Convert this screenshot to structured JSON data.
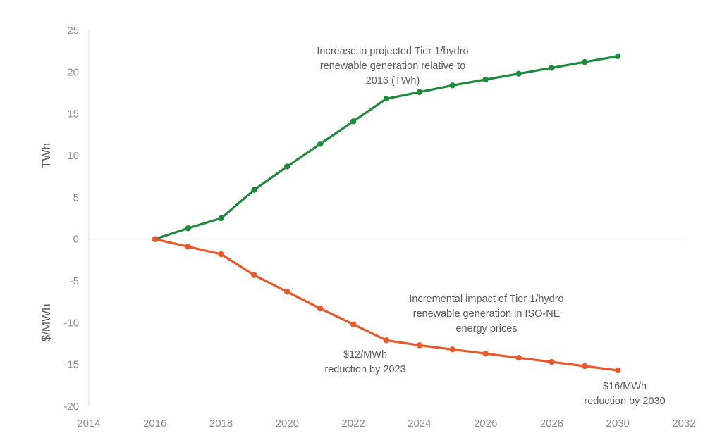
{
  "chart_data": {
    "type": "line",
    "xlim": [
      2014,
      2032
    ],
    "ylim": [
      -20,
      25
    ],
    "x_ticks": [
      "2014",
      "2016",
      "2018",
      "2020",
      "2022",
      "2024",
      "2026",
      "2028",
      "2030",
      "2032"
    ],
    "y_ticks": [
      "25",
      "20",
      "15",
      "10",
      "5",
      "0",
      "-5",
      "-10",
      "-15",
      "-20"
    ],
    "ylabel_top": "TWh",
    "ylabel_bottom": "$/MWh",
    "grid": false,
    "series": [
      {
        "color": "#1e8a3e",
        "x": [
          2016,
          2017,
          2018,
          2019,
          2020,
          2021,
          2022,
          2023,
          2024,
          2025,
          2026,
          2027,
          2028,
          2029,
          2030
        ],
        "y": [
          0,
          1.3,
          2.5,
          5.9,
          8.7,
          11.4,
          14.1,
          16.8,
          17.6,
          18.4,
          19.1,
          19.8,
          20.5,
          21.2,
          21.9
        ]
      },
      {
        "color": "#e8582a",
        "x": [
          2016,
          2017,
          2018,
          2019,
          2020,
          2021,
          2022,
          2023,
          2024,
          2025,
          2026,
          2027,
          2028,
          2029,
          2030
        ],
        "y": [
          0,
          -0.9,
          -1.8,
          -4.3,
          -6.3,
          -8.3,
          -10.2,
          -12.1,
          -12.7,
          -13.2,
          -13.7,
          -14.2,
          -14.7,
          -15.2,
          -15.7
        ]
      }
    ],
    "annotations": {
      "green_label": [
        "Increase in projected Tier 1/hydro",
        "renewable generation relative to",
        "2016 (TWh)"
      ],
      "orange_label": [
        "Incremental impact of Tier 1/hydro",
        "renewable generation in ISO-NE",
        "energy prices"
      ],
      "callout_2023": [
        "$12/MWh",
        "reduction by 2023"
      ],
      "callout_2030": [
        "$16/MWh",
        "reduction by 2030"
      ]
    }
  }
}
